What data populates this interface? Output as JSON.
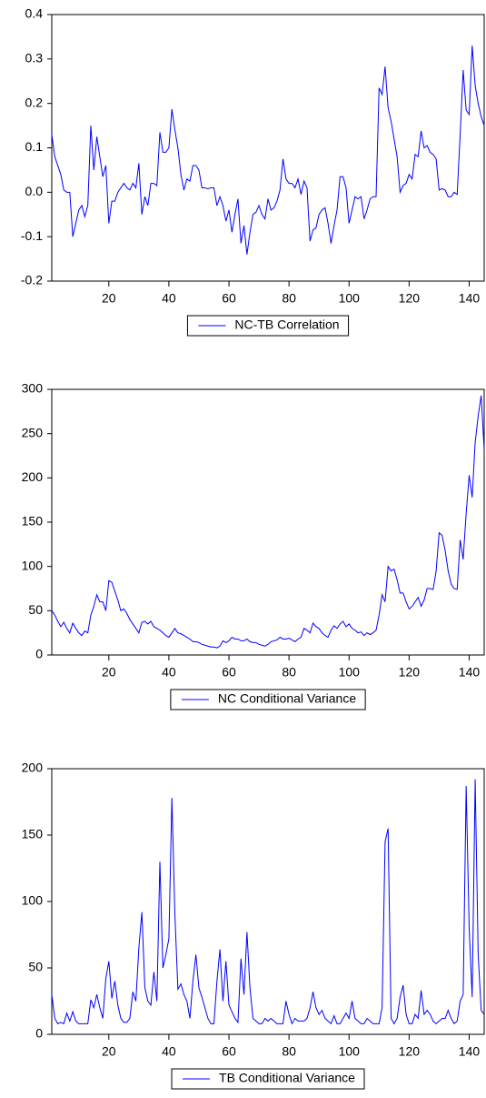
{
  "chart_data": [
    {
      "type": "line",
      "xlim": [
        1,
        145
      ],
      "xticks": [
        20,
        40,
        60,
        80,
        100,
        120,
        140
      ],
      "ylim": [
        -0.2,
        0.4
      ],
      "yticks": [
        0.4,
        0.3,
        0.2,
        0.1,
        {
          "value": 0,
          "label": "0.0"
        },
        -0.1,
        -0.2
      ],
      "legend": "bottom",
      "x": [
        1,
        2,
        3,
        4,
        5,
        6,
        7,
        8,
        9,
        10,
        11,
        12,
        13,
        14,
        15,
        16,
        17,
        18,
        19,
        20,
        21,
        22,
        23,
        24,
        25,
        26,
        27,
        28,
        29,
        30,
        31,
        32,
        33,
        34,
        35,
        36,
        37,
        38,
        39,
        40,
        41,
        42,
        43,
        44,
        45,
        46,
        47,
        48,
        49,
        50,
        51,
        52,
        53,
        54,
        55,
        56,
        57,
        58,
        59,
        60,
        61,
        62,
        63,
        64,
        65,
        66,
        67,
        68,
        69,
        70,
        71,
        72,
        73,
        74,
        75,
        76,
        77,
        78,
        79,
        80,
        81,
        82,
        83,
        84,
        85,
        86,
        87,
        88,
        89,
        90,
        91,
        92,
        93,
        94,
        95,
        96,
        97,
        98,
        99,
        100,
        101,
        102,
        103,
        104,
        105,
        106,
        107,
        108,
        109,
        110,
        111,
        112,
        113,
        114,
        115,
        116,
        117,
        118,
        119,
        120,
        121,
        122,
        123,
        124,
        125,
        126,
        127,
        128,
        129,
        130,
        131,
        132,
        133,
        134,
        135,
        136,
        137,
        138,
        139,
        140,
        141,
        142,
        143,
        144,
        145
      ],
      "series": [
        {
          "name": "NC-TB Correlation",
          "color": "#0000ff",
          "values": [
            0.13,
            0.08,
            0.06,
            0.04,
            0.005,
            0.0,
            0.0,
            -0.1,
            -0.07,
            -0.04,
            -0.03,
            -0.055,
            -0.03,
            0.15,
            0.05,
            0.125,
            0.08,
            0.035,
            0.06,
            -0.07,
            -0.02,
            -0.02,
            0.0,
            0.01,
            0.02,
            0.01,
            0.005,
            0.02,
            0.01,
            0.065,
            -0.05,
            -0.01,
            -0.03,
            0.02,
            0.02,
            0.015,
            0.135,
            0.09,
            0.09,
            0.1,
            0.187,
            0.14,
            0.1,
            0.04,
            0.005,
            0.03,
            0.025,
            0.06,
            0.06,
            0.05,
            0.01,
            0.01,
            0.008,
            0.01,
            0.01,
            -0.03,
            -0.01,
            -0.03,
            -0.065,
            -0.04,
            -0.09,
            -0.05,
            -0.015,
            -0.115,
            -0.075,
            -0.14,
            -0.09,
            -0.05,
            -0.045,
            -0.03,
            -0.05,
            -0.06,
            -0.015,
            -0.04,
            -0.035,
            -0.02,
            0.005,
            0.075,
            0.03,
            0.02,
            0.02,
            0.01,
            0.03,
            -0.005,
            0.025,
            0.01,
            -0.11,
            -0.085,
            -0.08,
            -0.05,
            -0.04,
            -0.035,
            -0.07,
            -0.115,
            -0.075,
            -0.04,
            0.035,
            0.035,
            0.01,
            -0.07,
            -0.04,
            -0.01,
            -0.015,
            -0.01,
            -0.06,
            -0.04,
            -0.015,
            -0.01,
            -0.01,
            0.235,
            0.22,
            0.283,
            0.19,
            0.16,
            0.12,
            0.08,
            0.0,
            0.015,
            0.02,
            0.04,
            0.03,
            0.085,
            0.08,
            0.138,
            0.1,
            0.105,
            0.09,
            0.085,
            0.075,
            0.005,
            0.008,
            0.005,
            -0.01,
            -0.01,
            0.0,
            -0.005,
            0.13,
            0.275,
            0.185,
            0.175,
            0.33,
            0.24,
            0.2,
            0.17,
            0.15
          ]
        }
      ]
    },
    {
      "type": "line",
      "xlim": [
        1,
        145
      ],
      "xticks": [
        20,
        40,
        60,
        80,
        100,
        120,
        140
      ],
      "ylim": [
        0,
        300
      ],
      "yticks": [
        300,
        250,
        200,
        150,
        100,
        50,
        0
      ],
      "legend": "bottom",
      "x": [
        1,
        2,
        3,
        4,
        5,
        6,
        7,
        8,
        9,
        10,
        11,
        12,
        13,
        14,
        15,
        16,
        17,
        18,
        19,
        20,
        21,
        22,
        23,
        24,
        25,
        26,
        27,
        28,
        29,
        30,
        31,
        32,
        33,
        34,
        35,
        36,
        37,
        38,
        39,
        40,
        41,
        42,
        43,
        44,
        45,
        46,
        47,
        48,
        49,
        50,
        51,
        52,
        53,
        54,
        55,
        56,
        57,
        58,
        59,
        60,
        61,
        62,
        63,
        64,
        65,
        66,
        67,
        68,
        69,
        70,
        71,
        72,
        73,
        74,
        75,
        76,
        77,
        78,
        79,
        80,
        81,
        82,
        83,
        84,
        85,
        86,
        87,
        88,
        89,
        90,
        91,
        92,
        93,
        94,
        95,
        96,
        97,
        98,
        99,
        100,
        101,
        102,
        103,
        104,
        105,
        106,
        107,
        108,
        109,
        110,
        111,
        112,
        113,
        114,
        115,
        116,
        117,
        118,
        119,
        120,
        121,
        122,
        123,
        124,
        125,
        126,
        127,
        128,
        129,
        130,
        131,
        132,
        133,
        134,
        135,
        136,
        137,
        138,
        139,
        140,
        141,
        142,
        143,
        144,
        145
      ],
      "series": [
        {
          "name": "NC Conditional Variance",
          "color": "#0000ff",
          "values": [
            50,
            45,
            38,
            32,
            37,
            30,
            25,
            36,
            30,
            25,
            22,
            27,
            25,
            45,
            55,
            68,
            60,
            60,
            50,
            84,
            82,
            72,
            62,
            50,
            52,
            47,
            40,
            35,
            30,
            25,
            37,
            38,
            35,
            38,
            32,
            30,
            28,
            25,
            22,
            20,
            25,
            30,
            25,
            24,
            22,
            20,
            18,
            15,
            15,
            14,
            12,
            11,
            10,
            9,
            9,
            8,
            10,
            16,
            14,
            16,
            20,
            18,
            18,
            16,
            16,
            18,
            15,
            14,
            14,
            12,
            11,
            10,
            12,
            15,
            16,
            17,
            20,
            18,
            18,
            19,
            17,
            15,
            18,
            20,
            30,
            28,
            25,
            36,
            32,
            30,
            25,
            22,
            20,
            28,
            33,
            30,
            35,
            38,
            32,
            35,
            30,
            28,
            25,
            26,
            22,
            25,
            23,
            25,
            28,
            45,
            68,
            60,
            100,
            95,
            97,
            85,
            70,
            70,
            60,
            52,
            55,
            60,
            65,
            55,
            62,
            75,
            75,
            74,
            95,
            138,
            135,
            118,
            95,
            80,
            75,
            74,
            130,
            108,
            160,
            203,
            178,
            240,
            270,
            293,
            232
          ]
        }
      ]
    },
    {
      "type": "line",
      "xlim": [
        1,
        145
      ],
      "xticks": [
        20,
        40,
        60,
        80,
        100,
        120,
        140
      ],
      "ylim": [
        0,
        200
      ],
      "yticks": [
        200,
        150,
        100,
        50,
        0
      ],
      "legend": "bottom",
      "x": [
        1,
        2,
        3,
        4,
        5,
        6,
        7,
        8,
        9,
        10,
        11,
        12,
        13,
        14,
        15,
        16,
        17,
        18,
        19,
        20,
        21,
        22,
        23,
        24,
        25,
        26,
        27,
        28,
        29,
        30,
        31,
        32,
        33,
        34,
        35,
        36,
        37,
        38,
        39,
        40,
        41,
        42,
        43,
        44,
        45,
        46,
        47,
        48,
        49,
        50,
        51,
        52,
        53,
        54,
        55,
        56,
        57,
        58,
        59,
        60,
        61,
        62,
        63,
        64,
        65,
        66,
        67,
        68,
        69,
        70,
        71,
        72,
        73,
        74,
        75,
        76,
        77,
        78,
        79,
        80,
        81,
        82,
        83,
        84,
        85,
        86,
        87,
        88,
        89,
        90,
        91,
        92,
        93,
        94,
        95,
        96,
        97,
        98,
        99,
        100,
        101,
        102,
        103,
        104,
        105,
        106,
        107,
        108,
        109,
        110,
        111,
        112,
        113,
        114,
        115,
        116,
        117,
        118,
        119,
        120,
        121,
        122,
        123,
        124,
        125,
        126,
        127,
        128,
        129,
        130,
        131,
        132,
        133,
        134,
        135,
        136,
        137,
        138,
        139,
        140,
        141,
        142,
        143,
        144,
        145
      ],
      "series": [
        {
          "name": "TB Conditional Variance",
          "color": "#0000ff",
          "values": [
            30,
            12,
            8,
            9,
            8,
            16,
            10,
            17,
            10,
            8,
            8,
            8,
            8,
            26,
            20,
            30,
            20,
            12,
            42,
            55,
            27,
            40,
            22,
            12,
            9,
            9,
            12,
            32,
            25,
            65,
            92,
            35,
            25,
            22,
            47,
            25,
            130,
            50,
            60,
            72,
            178,
            90,
            34,
            38,
            30,
            25,
            12,
            40,
            60,
            35,
            28,
            20,
            12,
            8,
            8,
            40,
            64,
            25,
            55,
            22,
            17,
            12,
            9,
            57,
            30,
            77,
            35,
            12,
            10,
            8,
            8,
            12,
            10,
            12,
            10,
            8,
            8,
            8,
            25,
            15,
            8,
            12,
            10,
            10,
            10,
            12,
            20,
            32,
            20,
            15,
            18,
            12,
            10,
            8,
            14,
            8,
            8,
            12,
            16,
            12,
            25,
            12,
            10,
            8,
            8,
            12,
            10,
            8,
            8,
            8,
            20,
            145,
            155,
            12,
            8,
            12,
            28,
            37,
            15,
            8,
            8,
            15,
            12,
            33,
            15,
            18,
            15,
            10,
            8,
            10,
            12,
            12,
            18,
            12,
            8,
            10,
            25,
            30,
            187,
            80,
            28,
            192,
            60,
            18,
            15
          ]
        }
      ]
    }
  ]
}
